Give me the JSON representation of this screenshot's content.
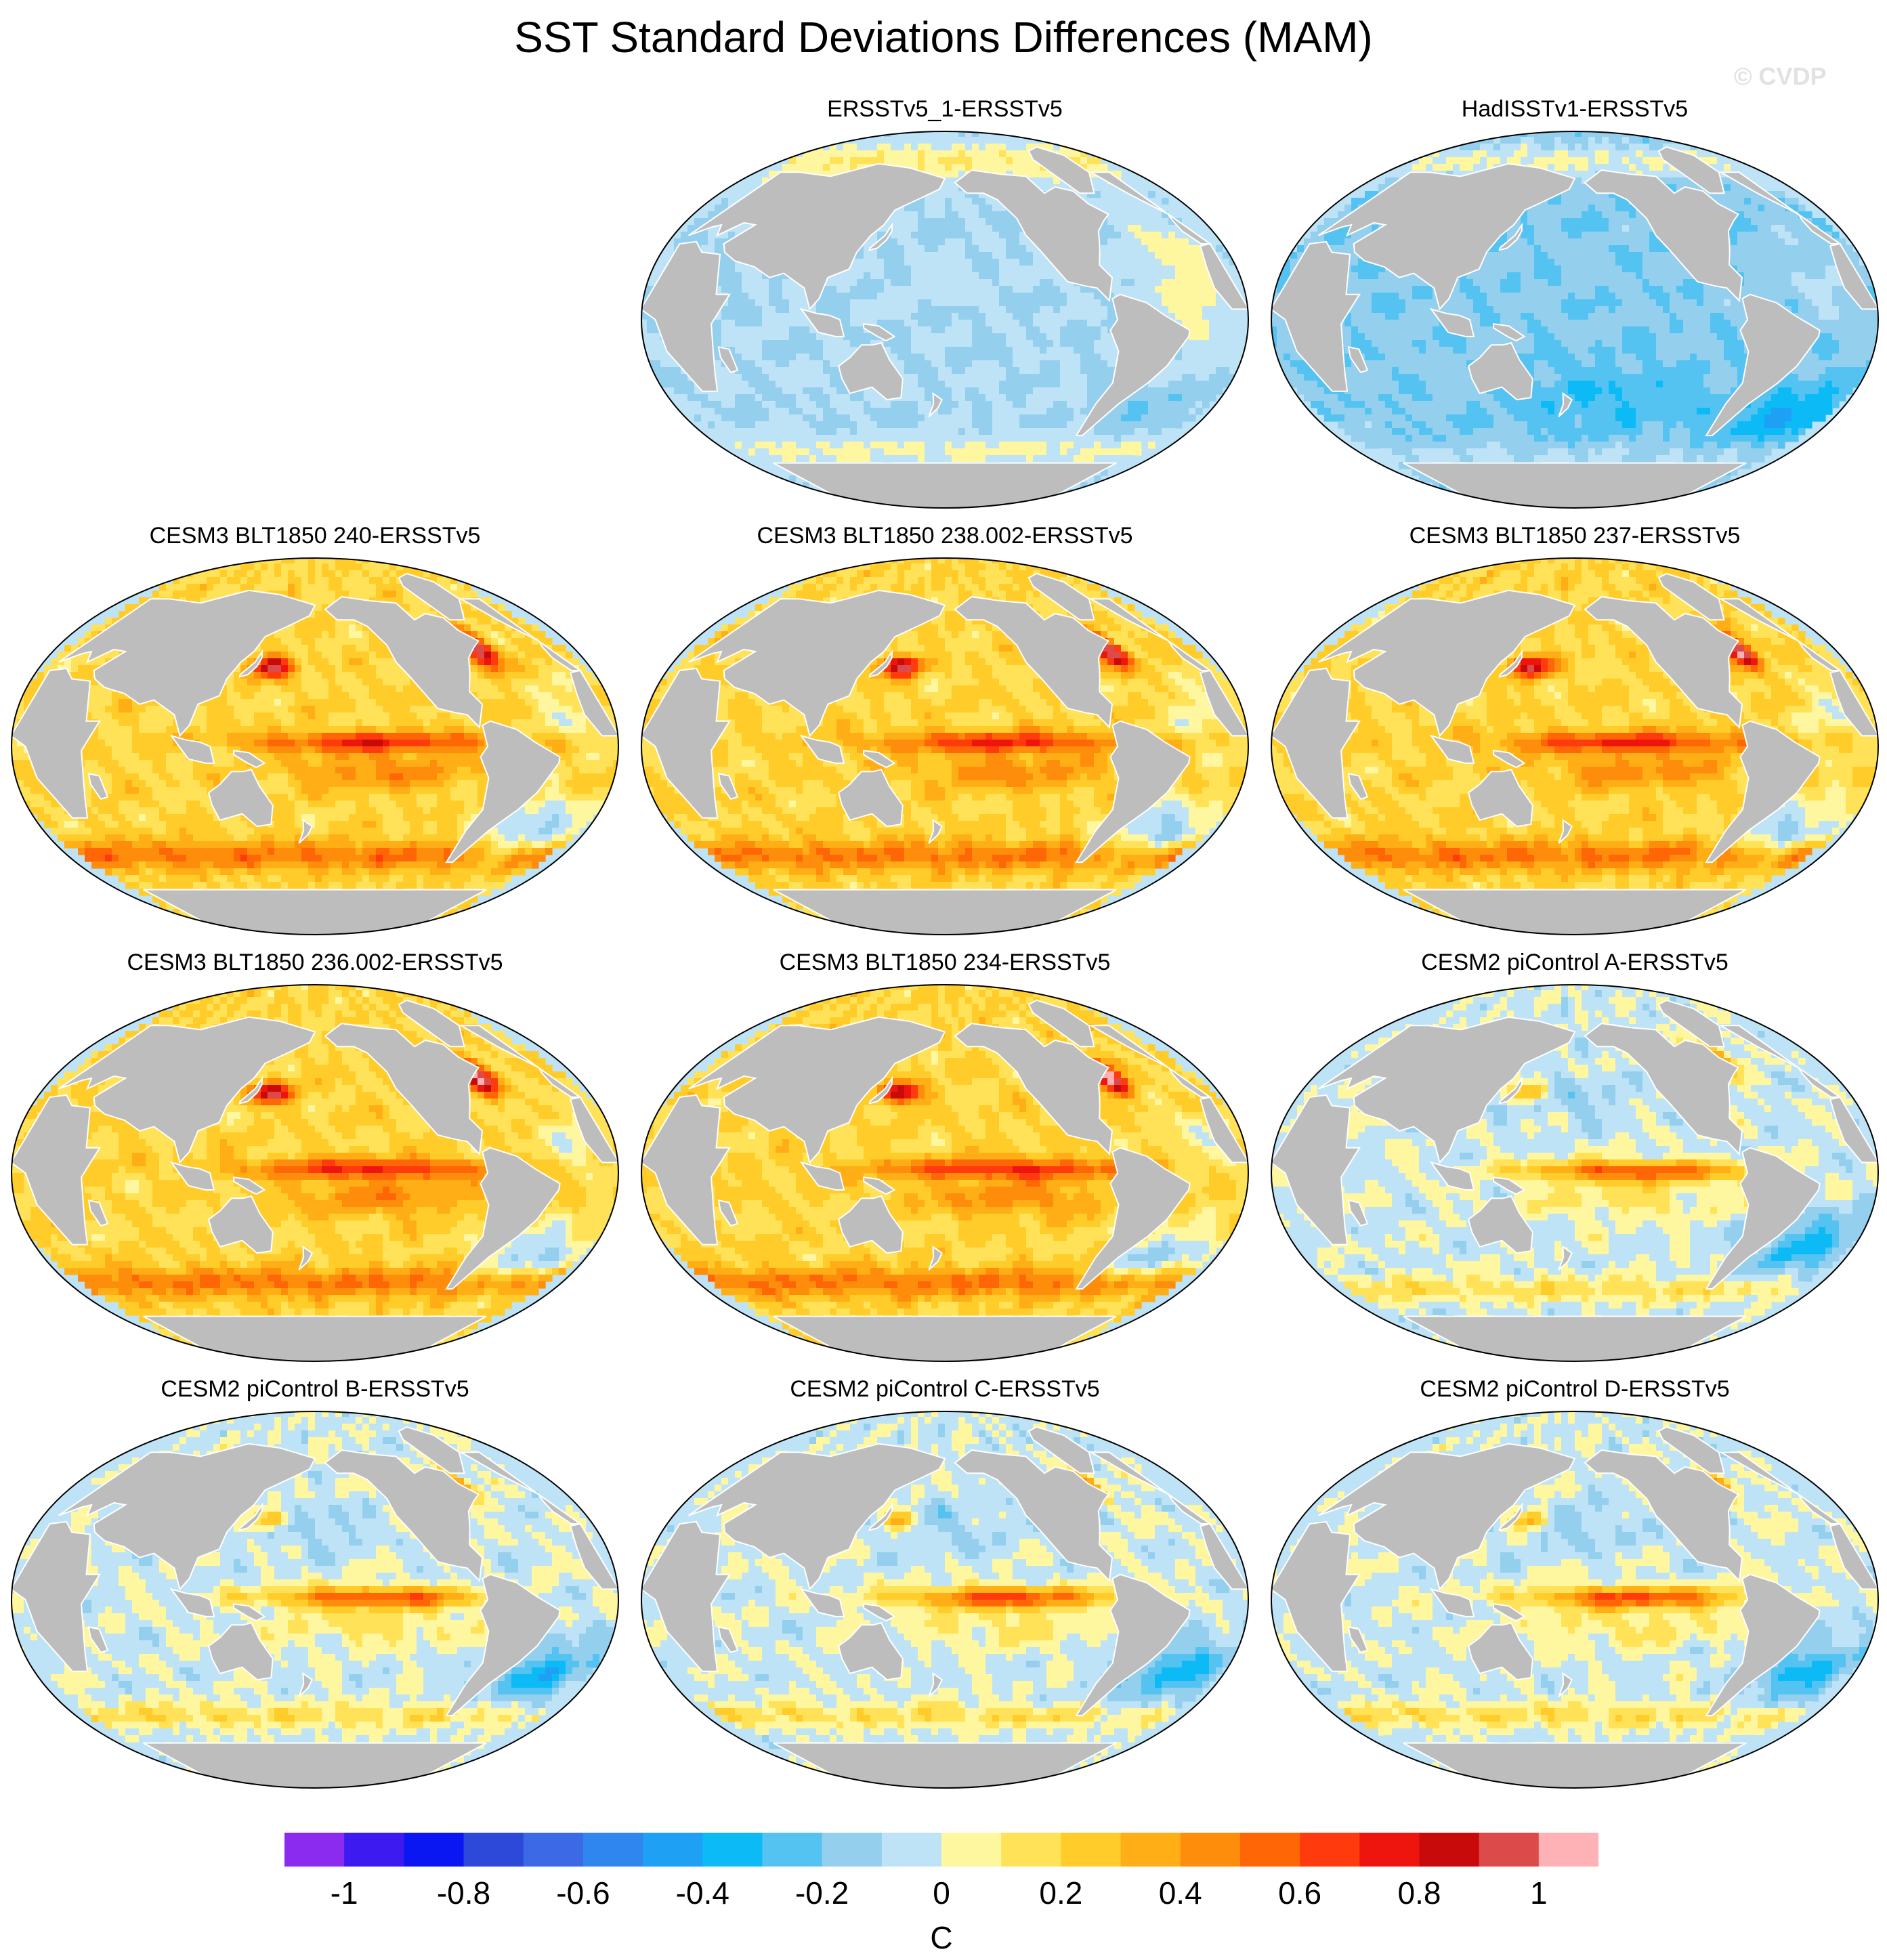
{
  "chart_data": {
    "type": "heatmap",
    "title": "SST Standard Deviations Differences (MAM)",
    "watermark": "© CVDP",
    "projection": "Robinson-like global map, Pacific-centred",
    "panels": [
      {
        "title": "ERSSTv5_1-ERSSTv5",
        "pattern": "obs1"
      },
      {
        "title": "HadISSTv1-ERSSTv5",
        "pattern": "obs2"
      },
      {
        "title": "CESM3 BLT1850 240-ERSSTv5",
        "pattern": "cesm3"
      },
      {
        "title": "CESM3 BLT1850 238.002-ERSSTv5",
        "pattern": "cesm3"
      },
      {
        "title": "CESM3 BLT1850 237-ERSSTv5",
        "pattern": "cesm3"
      },
      {
        "title": "CESM3 BLT1850 236.002-ERSSTv5",
        "pattern": "cesm3"
      },
      {
        "title": "CESM3 BLT1850 234-ERSSTv5",
        "pattern": "cesm3"
      },
      {
        "title": "CESM2 piControl A-ERSSTv5",
        "pattern": "cesm2"
      },
      {
        "title": "CESM2 piControl B-ERSSTv5",
        "pattern": "cesm2"
      },
      {
        "title": "CESM2 piControl C-ERSSTv5",
        "pattern": "cesm2"
      },
      {
        "title": "CESM2 piControl D-ERSSTv5",
        "pattern": "cesm2"
      }
    ],
    "colorbar": {
      "units": "C",
      "levels": [
        -1.1,
        -1.0,
        -0.9,
        -0.8,
        -0.7,
        -0.6,
        -0.5,
        -0.4,
        -0.3,
        -0.2,
        -0.1,
        0,
        0.1,
        0.2,
        0.3,
        0.4,
        0.5,
        0.6,
        0.7,
        0.8,
        0.9,
        1.0,
        1.1
      ],
      "colors": [
        "#8b2bf0",
        "#3d1bf0",
        "#0a17f2",
        "#2d49da",
        "#3c69e6",
        "#2f86ee",
        "#1ea0f4",
        "#0cbaf6",
        "#55c3f2",
        "#95cfee",
        "#bfe3f6",
        "#fff6a0",
        "#ffe257",
        "#ffcc2a",
        "#ffae16",
        "#ff8d0c",
        "#ff6606",
        "#ff3a0c",
        "#ee150f",
        "#c80a0a",
        "#dc4a4a",
        "#ffb2b6"
      ],
      "tick_values": [
        -1,
        -0.8,
        -0.6,
        -0.4,
        -0.2,
        0,
        0.2,
        0.4,
        0.6,
        0.8,
        1
      ],
      "tick_labels": [
        "-1",
        "-0.8",
        "-0.6",
        "-0.4",
        "-0.2",
        "0",
        "0.2",
        "0.4",
        "0.6",
        "0.8",
        "1"
      ]
    },
    "features": {
      "obs1": "mostly weak negative (-0.2 to -0.1) with weak positive patches in Atlantic, Southern Ocean and Arctic",
      "obs2": "widespread negative (-0.4 to -0.1), strongest in South Atlantic / Southern Ocean",
      "cesm3": "widespread positive (0.1 to 0.6), strong equatorial Pacific tongue (~0.7), Kuroshio and Gulf Stream / Labrador Sea maxima up to >1",
      "cesm2": "mixed; positive equatorial Pacific tongue (~0.6-0.7), negative South Atlantic and North Pacific"
    }
  }
}
